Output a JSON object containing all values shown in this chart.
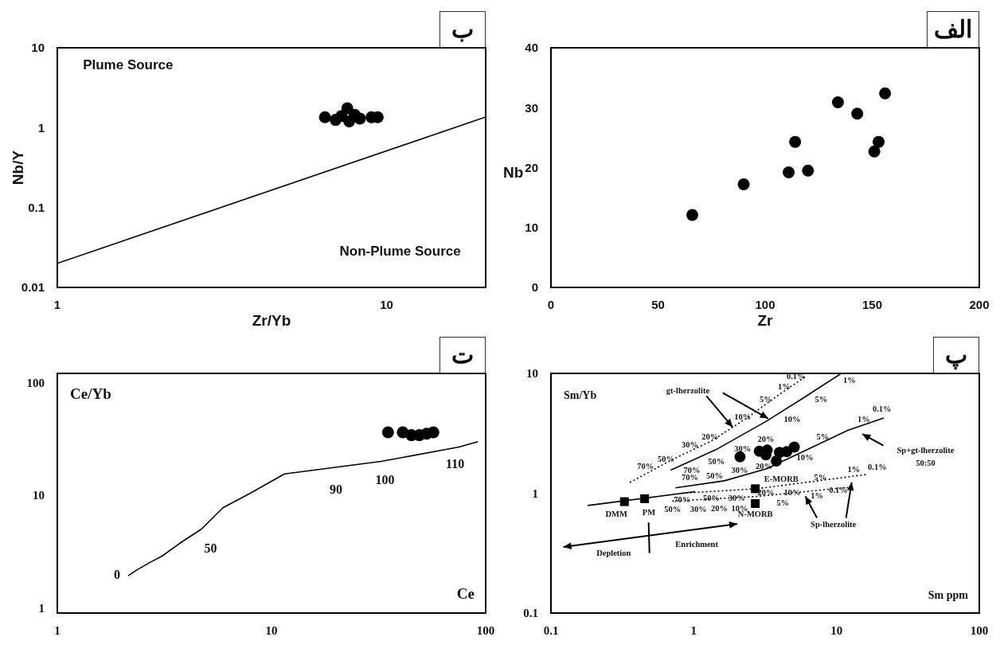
{
  "chart_data": [
    {
      "type": "scatter",
      "title": "ب",
      "xlabel": "Zr/Yb",
      "ylabel": "Nb/Y",
      "log": "xy",
      "xlim": [
        1,
        20
      ],
      "ylim": [
        0.01,
        10
      ],
      "xticks": [
        1,
        10
      ],
      "yticks": [
        0.01,
        0.1,
        1,
        10
      ],
      "series": [
        {
          "color": "#000000",
          "marker": "circle",
          "x": [
            6.5,
            7.0,
            7.3,
            7.6,
            7.7,
            8.0,
            8.3,
            9.0,
            9.4
          ],
          "values": [
            1.35,
            1.25,
            1.4,
            1.75,
            1.2,
            1.45,
            1.3,
            1.35,
            1.35
          ]
        },
        {
          "type": "line",
          "color": "#000000",
          "x": [
            1,
            20
          ],
          "values": [
            0.02,
            1.36
          ]
        }
      ],
      "annotations": [
        "Plume Source",
        "Non-Plume Source"
      ]
    },
    {
      "type": "scatter",
      "title": "الف",
      "xlabel": "Zr",
      "ylabel": "Nb",
      "xlim": [
        0,
        200
      ],
      "ylim": [
        0,
        40
      ],
      "xticks": [
        0,
        50,
        100,
        150,
        200
      ],
      "yticks": [
        0,
        10,
        20,
        30,
        40
      ],
      "series": [
        {
          "color": "#000000",
          "marker": "circle",
          "x": [
            66,
            90,
            111,
            114,
            120,
            134,
            143,
            151,
            153,
            156
          ],
          "values": [
            12.1,
            17.2,
            19.2,
            24.3,
            19.5,
            30.9,
            29.0,
            22.7,
            24.3,
            32.4
          ]
        }
      ]
    },
    {
      "type": "scatter",
      "title": "ت",
      "xlabel": "Ce",
      "ylabel": "Ce/Yb",
      "log": "xy",
      "xlim": [
        1,
        100
      ],
      "ylim": [
        0.9,
        120
      ],
      "xticks": [
        1,
        10,
        100
      ],
      "yticks": [
        1,
        10,
        100
      ],
      "series": [
        {
          "type": "line",
          "color": "#000000",
          "x": [
            2.14,
            2.36,
            2.69,
            3.09,
            3.7,
            4.71,
            5.93,
            7.96,
            11.5,
            32.5,
            75,
            92
          ],
          "values": [
            1.93,
            2.18,
            2.51,
            2.89,
            3.7,
            5.0,
            7.73,
            10.4,
            15.4,
            19.9,
            26.7,
            29.8
          ]
        },
        {
          "color": "#000000",
          "marker": "circle",
          "x": [
            35,
            41,
            45,
            49,
            53,
            57
          ],
          "values": [
            36,
            36,
            34,
            34,
            35,
            36
          ]
        }
      ],
      "annotations": [
        "0",
        "50",
        "90",
        "100",
        "110"
      ]
    },
    {
      "type": "scatter",
      "title": "پ",
      "xlabel": "Sm ppm",
      "ylabel": "Sm/Yb",
      "log": "xy",
      "xlim": [
        0.1,
        100
      ],
      "ylim": [
        0.1,
        10
      ],
      "xticks": [
        0.1,
        1,
        10,
        100
      ],
      "yticks": [
        0.1,
        1,
        10
      ],
      "series": [
        {
          "type": "line",
          "color": "#000000",
          "line_style": "dotted",
          "x": [
            0.357,
            0.708,
            1.33,
            2.36,
            3.79,
            6.08
          ],
          "values": [
            1.23,
            1.91,
            2.73,
            4.25,
            6.42,
            9.43
          ]
        },
        {
          "type": "line",
          "color": "#000000",
          "x": [
            0.689,
            1.47,
            3.24,
            6.08,
            10.8
          ],
          "values": [
            1.56,
            2.35,
            4.0,
            6.42,
            10
          ]
        },
        {
          "type": "line",
          "color": "#000000",
          "x": [
            0.745,
            1.64,
            3.24,
            6.4,
            12.0,
            21.4
          ],
          "values": [
            1.11,
            1.27,
            1.6,
            2.35,
            3.35,
            4.25
          ]
        },
        {
          "type": "line",
          "color": "#000000",
          "x": [
            0.181,
            1.02
          ],
          "values": [
            0.79,
            1.03
          ]
        },
        {
          "type": "line",
          "color": "#000000",
          "line_style": "dotted",
          "x": [
            0.828,
            2.77,
            16.0
          ],
          "values": [
            1.0,
            1.09,
            1.43
          ]
        },
        {
          "type": "line",
          "color": "#000000",
          "line_style": "dotted",
          "x": [
            0.708,
            2.77,
            12.0
          ],
          "values": [
            0.86,
            0.94,
            1.12
          ]
        },
        {
          "color": "#000000",
          "marker": "square",
          "x": [
            0.327,
            0.453,
            2.7,
            2.7
          ],
          "values": [
            0.85,
            0.9,
            1.09,
            0.82
          ]
        },
        {
          "color": "#000000",
          "marker": "circle",
          "x": [
            2.11,
            2.88,
            3.27,
            3.2,
            3.79,
            3.99,
            4.48,
            5.06
          ],
          "values": [
            2.01,
            2.24,
            2.29,
            2.09,
            1.86,
            2.19,
            2.22,
            2.43
          ]
        }
      ],
      "annotations": [
        "0.1%",
        "1%",
        "5%",
        "10%",
        "20%",
        "30%",
        "50%",
        "70%",
        "1%",
        "5%",
        "10%",
        "20%",
        "30%",
        "50%",
        "70%",
        "0.1%",
        "1%",
        "5%",
        "10%",
        "20%",
        "30%",
        "50%",
        "70%",
        "0.1%",
        "1%",
        "5%",
        "10%",
        "20%",
        "30%",
        "50%",
        "70%",
        "0.1%",
        "1%",
        "5%",
        "10%",
        "20%",
        "30%",
        "50%",
        "gt-lherzolite",
        "Sp+gt-lherzolite",
        "50:50",
        "E-MORB",
        "N-MORB",
        "DMM",
        "PM",
        "Sp-lherzolite",
        "Depletion",
        "Enrichment"
      ]
    }
  ]
}
